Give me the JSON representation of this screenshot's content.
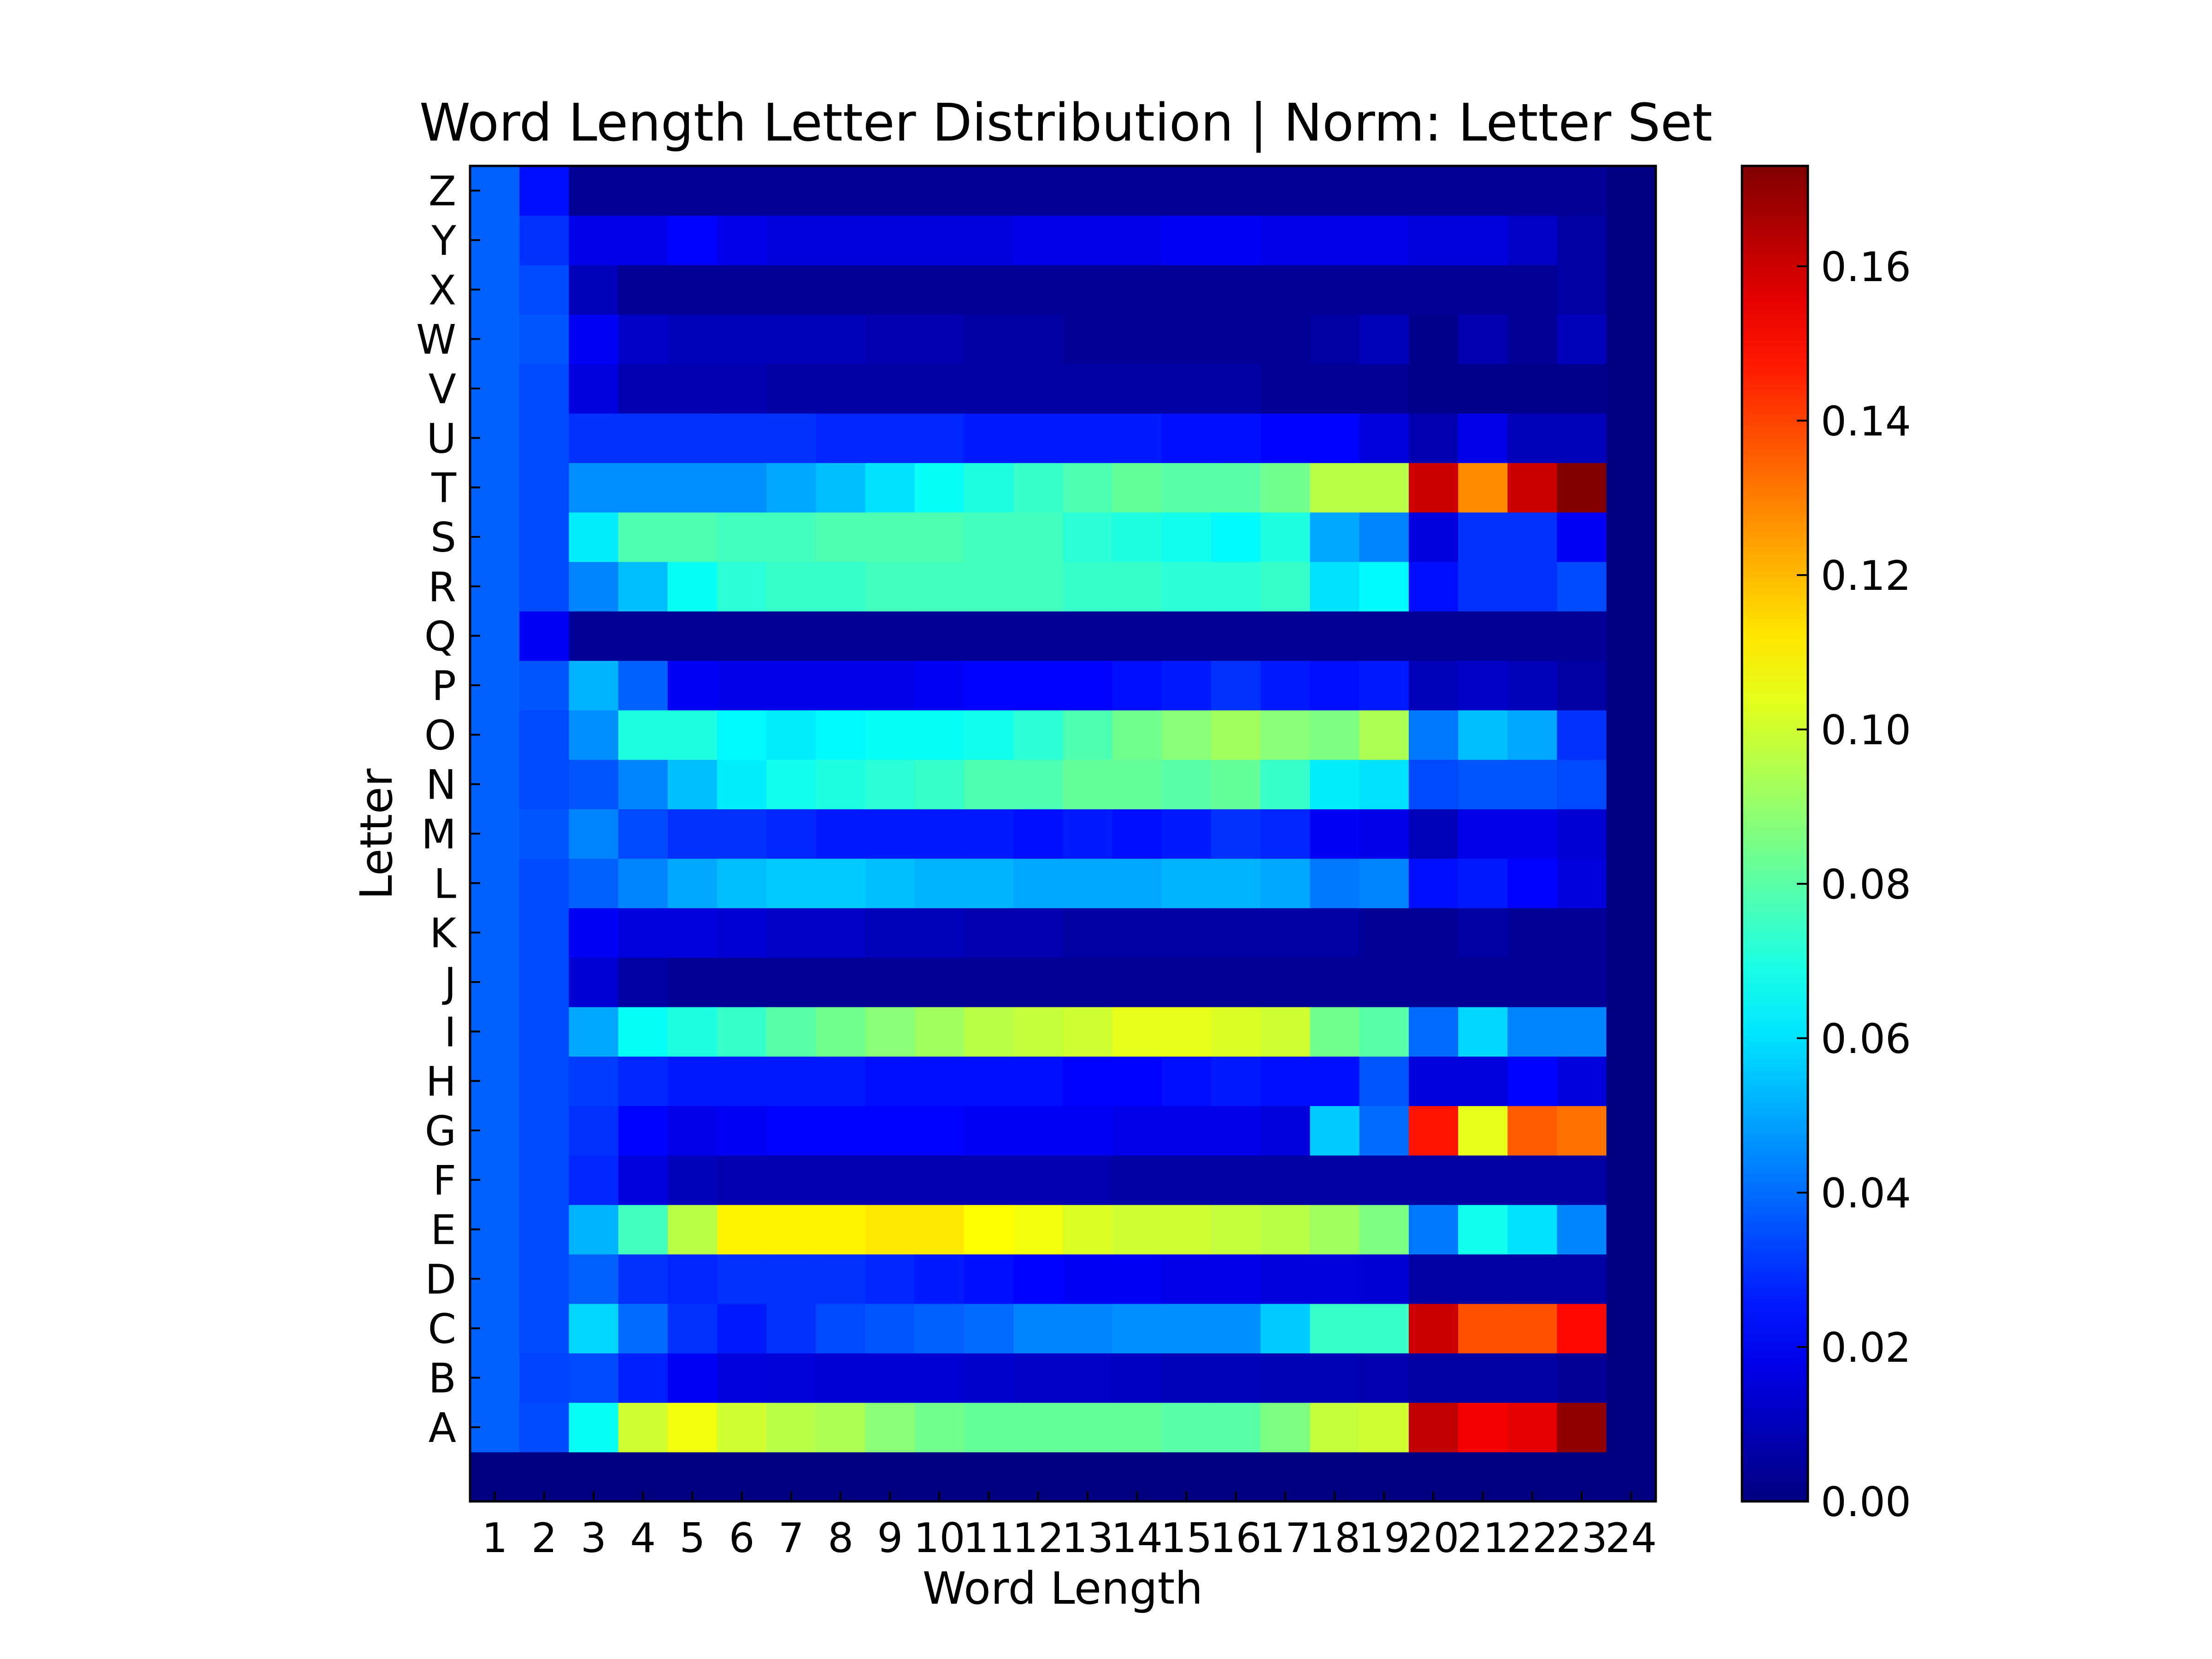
{
  "chart_data": {
    "type": "heatmap",
    "title": "Word Length Letter Distribution | Norm: Letter Set",
    "xlabel": "Word Length",
    "ylabel": "Letter",
    "x_tick_labels": [
      "1",
      "2",
      "3",
      "4",
      "5",
      "6",
      "7",
      "8",
      "9",
      "10",
      "11",
      "12",
      "13",
      "14",
      "15",
      "16",
      "17",
      "18",
      "19",
      "20",
      "21",
      "22",
      "23",
      "24"
    ],
    "y_tick_labels": [
      "A",
      "B",
      "C",
      "D",
      "E",
      "F",
      "G",
      "H",
      "I",
      "J",
      "K",
      "L",
      "M",
      "N",
      "O",
      "P",
      "Q",
      "R",
      "S",
      "T",
      "U",
      "V",
      "W",
      "X",
      "Y",
      "Z"
    ],
    "colormap": "jet",
    "colorbar": {
      "range": [
        0.0,
        0.173
      ],
      "tick_values": [
        0.0,
        0.02,
        0.04,
        0.06,
        0.08,
        0.1,
        0.12,
        0.14,
        0.16
      ],
      "tick_labels": [
        "0.00",
        "0.02",
        "0.04",
        "0.06",
        "0.08",
        "0.10",
        "0.12",
        "0.14",
        "0.16"
      ]
    },
    "grid": false,
    "matrix_rows_note": "rows are letters A..Z; columns are word lengths 1..24; an extra empty bottom row is present in the figure",
    "values": [
      [
        0.038,
        0.034,
        0.066,
        0.1,
        0.106,
        0.1,
        0.096,
        0.094,
        0.088,
        0.084,
        0.082,
        0.082,
        0.082,
        0.082,
        0.08,
        0.08,
        0.086,
        0.098,
        0.1,
        0.162,
        0.153,
        0.156,
        0.17,
        0.0
      ],
      [
        0.038,
        0.033,
        0.034,
        0.027,
        0.02,
        0.016,
        0.015,
        0.014,
        0.014,
        0.014,
        0.013,
        0.012,
        0.012,
        0.011,
        0.01,
        0.01,
        0.009,
        0.009,
        0.008,
        0.006,
        0.006,
        0.006,
        0.004,
        0.0
      ],
      [
        0.038,
        0.034,
        0.058,
        0.04,
        0.03,
        0.026,
        0.03,
        0.034,
        0.036,
        0.038,
        0.04,
        0.044,
        0.044,
        0.046,
        0.046,
        0.046,
        0.056,
        0.074,
        0.074,
        0.16,
        0.138,
        0.138,
        0.15,
        0.0
      ],
      [
        0.038,
        0.034,
        0.038,
        0.03,
        0.028,
        0.03,
        0.03,
        0.03,
        0.028,
        0.026,
        0.024,
        0.022,
        0.02,
        0.02,
        0.018,
        0.018,
        0.016,
        0.016,
        0.014,
        0.006,
        0.006,
        0.006,
        0.006,
        0.0
      ],
      [
        0.038,
        0.034,
        0.052,
        0.076,
        0.096,
        0.11,
        0.11,
        0.11,
        0.112,
        0.112,
        0.108,
        0.106,
        0.102,
        0.1,
        0.1,
        0.098,
        0.096,
        0.092,
        0.086,
        0.042,
        0.068,
        0.06,
        0.044,
        0.0
      ],
      [
        0.038,
        0.034,
        0.028,
        0.016,
        0.01,
        0.008,
        0.008,
        0.008,
        0.008,
        0.008,
        0.008,
        0.008,
        0.008,
        0.006,
        0.006,
        0.006,
        0.006,
        0.006,
        0.006,
        0.006,
        0.006,
        0.006,
        0.006,
        0.0
      ],
      [
        0.038,
        0.034,
        0.03,
        0.022,
        0.018,
        0.02,
        0.022,
        0.022,
        0.022,
        0.022,
        0.02,
        0.02,
        0.02,
        0.018,
        0.018,
        0.018,
        0.016,
        0.056,
        0.04,
        0.148,
        0.104,
        0.136,
        0.132,
        0.0
      ],
      [
        0.038,
        0.034,
        0.032,
        0.028,
        0.026,
        0.026,
        0.026,
        0.026,
        0.024,
        0.024,
        0.024,
        0.024,
        0.022,
        0.022,
        0.024,
        0.026,
        0.024,
        0.024,
        0.036,
        0.016,
        0.016,
        0.022,
        0.016,
        0.0
      ],
      [
        0.038,
        0.034,
        0.05,
        0.066,
        0.07,
        0.074,
        0.08,
        0.084,
        0.088,
        0.092,
        0.096,
        0.098,
        0.1,
        0.104,
        0.104,
        0.102,
        0.1,
        0.084,
        0.08,
        0.04,
        0.058,
        0.044,
        0.044,
        0.0
      ],
      [
        0.038,
        0.034,
        0.014,
        0.006,
        0.004,
        0.004,
        0.004,
        0.004,
        0.004,
        0.004,
        0.004,
        0.004,
        0.004,
        0.004,
        0.004,
        0.004,
        0.004,
        0.004,
        0.004,
        0.004,
        0.004,
        0.004,
        0.004,
        0.0
      ],
      [
        0.038,
        0.034,
        0.02,
        0.016,
        0.016,
        0.014,
        0.012,
        0.012,
        0.01,
        0.01,
        0.008,
        0.008,
        0.006,
        0.006,
        0.006,
        0.006,
        0.006,
        0.006,
        0.004,
        0.004,
        0.006,
        0.004,
        0.004,
        0.0
      ],
      [
        0.038,
        0.034,
        0.038,
        0.044,
        0.05,
        0.054,
        0.056,
        0.056,
        0.054,
        0.052,
        0.052,
        0.05,
        0.05,
        0.05,
        0.052,
        0.052,
        0.05,
        0.042,
        0.044,
        0.024,
        0.026,
        0.022,
        0.016,
        0.0
      ],
      [
        0.038,
        0.036,
        0.044,
        0.034,
        0.03,
        0.03,
        0.028,
        0.026,
        0.026,
        0.026,
        0.026,
        0.024,
        0.026,
        0.024,
        0.026,
        0.03,
        0.028,
        0.02,
        0.018,
        0.01,
        0.018,
        0.018,
        0.014,
        0.0
      ],
      [
        0.038,
        0.034,
        0.036,
        0.044,
        0.054,
        0.062,
        0.068,
        0.07,
        0.072,
        0.074,
        0.078,
        0.078,
        0.082,
        0.082,
        0.08,
        0.082,
        0.074,
        0.062,
        0.06,
        0.034,
        0.036,
        0.036,
        0.034,
        0.0
      ],
      [
        0.038,
        0.034,
        0.046,
        0.07,
        0.07,
        0.064,
        0.062,
        0.064,
        0.066,
        0.066,
        0.068,
        0.072,
        0.078,
        0.084,
        0.088,
        0.092,
        0.088,
        0.086,
        0.094,
        0.042,
        0.054,
        0.05,
        0.03,
        0.0
      ],
      [
        0.038,
        0.036,
        0.052,
        0.038,
        0.02,
        0.018,
        0.018,
        0.018,
        0.018,
        0.02,
        0.022,
        0.022,
        0.022,
        0.024,
        0.026,
        0.03,
        0.026,
        0.024,
        0.026,
        0.01,
        0.012,
        0.01,
        0.006,
        0.0
      ],
      [
        0.038,
        0.02,
        0.004,
        0.004,
        0.004,
        0.004,
        0.004,
        0.004,
        0.004,
        0.004,
        0.004,
        0.004,
        0.004,
        0.004,
        0.004,
        0.004,
        0.004,
        0.004,
        0.004,
        0.004,
        0.004,
        0.004,
        0.004,
        0.0
      ],
      [
        0.038,
        0.034,
        0.044,
        0.054,
        0.066,
        0.072,
        0.074,
        0.074,
        0.076,
        0.076,
        0.076,
        0.076,
        0.074,
        0.074,
        0.072,
        0.072,
        0.074,
        0.06,
        0.064,
        0.024,
        0.03,
        0.03,
        0.034,
        0.0
      ],
      [
        0.038,
        0.034,
        0.062,
        0.078,
        0.078,
        0.076,
        0.076,
        0.078,
        0.078,
        0.078,
        0.076,
        0.076,
        0.072,
        0.07,
        0.068,
        0.064,
        0.07,
        0.05,
        0.044,
        0.016,
        0.03,
        0.03,
        0.02,
        0.0
      ],
      [
        0.038,
        0.034,
        0.046,
        0.046,
        0.046,
        0.046,
        0.05,
        0.054,
        0.06,
        0.066,
        0.07,
        0.074,
        0.078,
        0.082,
        0.08,
        0.08,
        0.084,
        0.096,
        0.096,
        0.16,
        0.128,
        0.16,
        0.173,
        0.0
      ],
      [
        0.038,
        0.034,
        0.03,
        0.03,
        0.03,
        0.03,
        0.03,
        0.028,
        0.028,
        0.028,
        0.026,
        0.026,
        0.026,
        0.026,
        0.024,
        0.024,
        0.022,
        0.022,
        0.016,
        0.008,
        0.018,
        0.01,
        0.01,
        0.0
      ],
      [
        0.038,
        0.034,
        0.016,
        0.008,
        0.008,
        0.008,
        0.006,
        0.006,
        0.006,
        0.006,
        0.006,
        0.006,
        0.006,
        0.006,
        0.006,
        0.006,
        0.004,
        0.004,
        0.004,
        0.002,
        0.002,
        0.002,
        0.002,
        0.0
      ],
      [
        0.038,
        0.036,
        0.02,
        0.012,
        0.01,
        0.01,
        0.01,
        0.01,
        0.008,
        0.008,
        0.006,
        0.006,
        0.004,
        0.004,
        0.004,
        0.004,
        0.004,
        0.006,
        0.01,
        0.002,
        0.008,
        0.004,
        0.01,
        0.0
      ],
      [
        0.038,
        0.034,
        0.01,
        0.004,
        0.004,
        0.004,
        0.004,
        0.004,
        0.004,
        0.004,
        0.004,
        0.004,
        0.004,
        0.004,
        0.004,
        0.004,
        0.004,
        0.004,
        0.004,
        0.004,
        0.004,
        0.004,
        0.006,
        0.0
      ],
      [
        0.038,
        0.03,
        0.018,
        0.018,
        0.022,
        0.018,
        0.016,
        0.016,
        0.016,
        0.016,
        0.016,
        0.018,
        0.018,
        0.018,
        0.02,
        0.02,
        0.018,
        0.018,
        0.018,
        0.016,
        0.016,
        0.012,
        0.006,
        0.0
      ],
      [
        0.038,
        0.024,
        0.004,
        0.004,
        0.004,
        0.004,
        0.004,
        0.004,
        0.004,
        0.004,
        0.004,
        0.004,
        0.004,
        0.004,
        0.004,
        0.004,
        0.004,
        0.004,
        0.004,
        0.004,
        0.004,
        0.004,
        0.004,
        0.0
      ]
    ]
  }
}
